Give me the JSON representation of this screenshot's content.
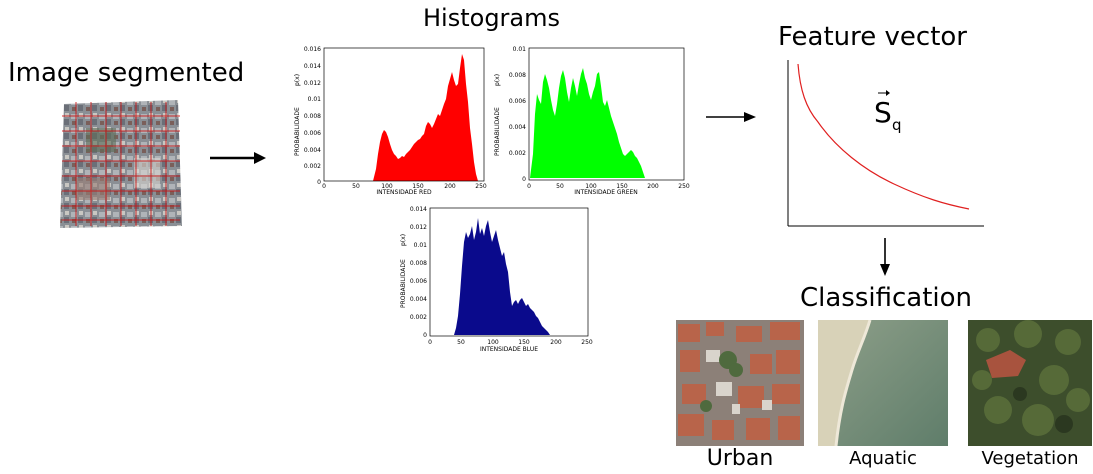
{
  "diagram": {
    "image_segmented_title": "Image segmented",
    "histograms_title": "Histograms",
    "feature_vector_title": "Feature vector",
    "feature_symbol": "S",
    "feature_subscript": "q",
    "classification_title": "Classification"
  },
  "histograms": [
    {
      "id": "red",
      "color": "#ff0000",
      "xlabel": "INTENSIDADE RED",
      "ylabel": "PROBABILIDADE",
      "pxlabel": "p(x)",
      "yticks": [
        "0.016",
        "0.014",
        "0.012",
        "0.01",
        "0.008",
        "0.006",
        "0.004",
        "0.002",
        "0"
      ],
      "xticks": [
        "0",
        "50",
        "100",
        "150",
        "200",
        "250"
      ]
    },
    {
      "id": "green",
      "color": "#00ff00",
      "xlabel": "INTENSIDADE GREEN",
      "ylabel": "PROBABILIDADE",
      "pxlabel": "p(x)",
      "yticks": [
        "0.01",
        "0.008",
        "0.006",
        "0.004",
        "0.002",
        "0"
      ],
      "xticks": [
        "0",
        "50",
        "100",
        "150",
        "200",
        "250"
      ]
    },
    {
      "id": "blue",
      "color": "#0a0a8c",
      "xlabel": "INTENSIDADE BLUE",
      "ylabel": "PROBABILIDADE",
      "pxlabel": "p(x)",
      "yticks": [
        "0.014",
        "0.012",
        "0.01",
        "0.008",
        "0.006",
        "0.004",
        "0.002",
        "0"
      ],
      "xticks": [
        "0",
        "50",
        "100",
        "150",
        "200",
        "250"
      ]
    }
  ],
  "classes": [
    {
      "id": "urban",
      "label": "Urban"
    },
    {
      "id": "aquatic",
      "label": "Aquatic"
    },
    {
      "id": "vegetation",
      "label": "Vegetation"
    }
  ],
  "colors": {
    "red_hist": "#ff0000",
    "green_hist": "#00ff00",
    "blue_hist": "#0a0a8c",
    "feature_curve": "#e02020",
    "grid_lines": "#d01010"
  },
  "icons": [
    "right-arrow-icon",
    "down-arrow-icon"
  ]
}
